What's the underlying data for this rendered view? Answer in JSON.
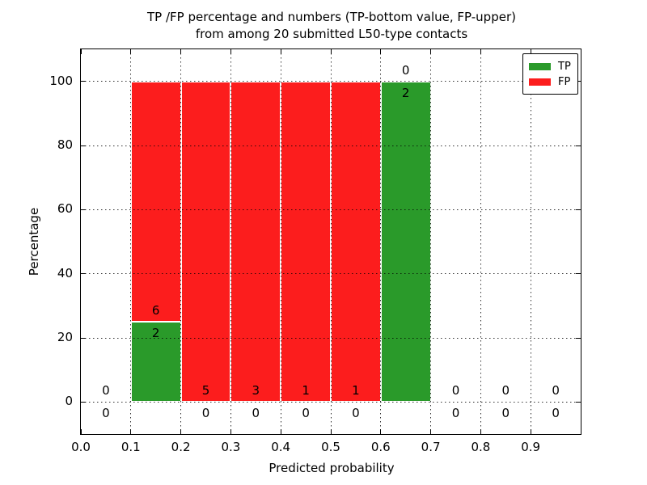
{
  "chart_data": {
    "type": "bar",
    "stacked": true,
    "title": [
      "TP /FP percentage and numbers (TP-bottom value, FP-upper)",
      "from among 20 submitted L50-type contacts"
    ],
    "xlabel": "Predicted probability",
    "ylabel": "Percentage",
    "xlim": [
      0.0,
      1.0
    ],
    "ylim": [
      -10,
      110
    ],
    "grid": "dotted both axes, drawn over bars",
    "colors": {
      "tp": "#2a9a2a",
      "fp": "#fc1d1d",
      "frame": "#000000"
    },
    "xticks": {
      "values": [
        0.0,
        0.1,
        0.2,
        0.3,
        0.4,
        0.5,
        0.6,
        0.7,
        0.8,
        0.9
      ],
      "labels": [
        "0.0",
        "0.1",
        "0.2",
        "0.3",
        "0.4",
        "0.5",
        "0.6",
        "0.7",
        "0.8",
        "0.9"
      ]
    },
    "yticks": {
      "values": [
        0,
        20,
        40,
        60,
        80,
        100
      ],
      "labels": [
        "0",
        "20",
        "40",
        "60",
        "80",
        "100"
      ]
    },
    "legend": {
      "position": "upper right",
      "items": [
        {
          "label": "TP"
        },
        {
          "label": "FP"
        }
      ]
    },
    "bins": [
      {
        "range": [
          0.0,
          0.1
        ],
        "tp": 0,
        "fp": 0
      },
      {
        "range": [
          0.1,
          0.2
        ],
        "tp": 2,
        "fp": 6
      },
      {
        "range": [
          0.2,
          0.3
        ],
        "tp": 0,
        "fp": 5
      },
      {
        "range": [
          0.3,
          0.4
        ],
        "tp": 0,
        "fp": 3
      },
      {
        "range": [
          0.4,
          0.5
        ],
        "tp": 0,
        "fp": 1
      },
      {
        "range": [
          0.5,
          0.6
        ],
        "tp": 0,
        "fp": 1
      },
      {
        "range": [
          0.6,
          0.7
        ],
        "tp": 2,
        "fp": 0
      },
      {
        "range": [
          0.7,
          0.8
        ],
        "tp": 0,
        "fp": 0
      },
      {
        "range": [
          0.8,
          0.9
        ],
        "tp": 0,
        "fp": 0
      },
      {
        "range": [
          0.9,
          1.0
        ],
        "tp": 0,
        "fp": 0
      }
    ]
  }
}
